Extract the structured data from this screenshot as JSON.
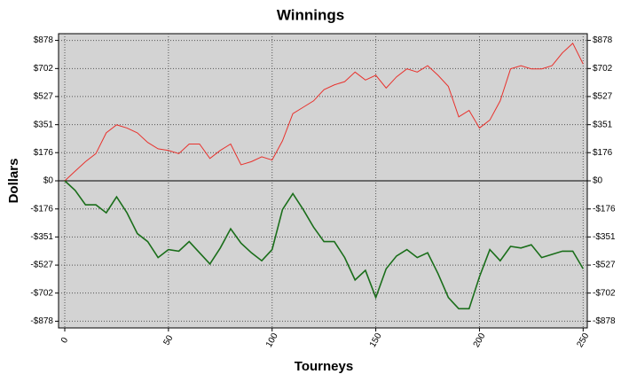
{
  "chart_data": {
    "type": "line",
    "title": "Winnings",
    "x_label": "Tourneys",
    "y_label": "Dollars",
    "x": [
      0,
      5,
      10,
      15,
      20,
      25,
      30,
      35,
      40,
      45,
      50,
      55,
      60,
      65,
      70,
      75,
      80,
      85,
      90,
      95,
      100,
      105,
      110,
      115,
      120,
      125,
      130,
      135,
      140,
      145,
      150,
      155,
      160,
      165,
      170,
      175,
      180,
      185,
      190,
      195,
      200,
      205,
      210,
      215,
      220,
      225,
      230,
      235,
      240,
      245,
      250
    ],
    "series": [
      {
        "color": "#e8322d",
        "values": [
          0,
          60,
          120,
          170,
          300,
          350,
          330,
          300,
          240,
          200,
          190,
          170,
          230,
          230,
          140,
          190,
          230,
          100,
          120,
          150,
          130,
          250,
          420,
          460,
          500,
          570,
          600,
          620,
          680,
          630,
          660,
          580,
          650,
          700,
          680,
          720,
          660,
          590,
          400,
          440,
          330,
          380,
          500,
          700,
          720,
          700,
          700,
          720,
          800,
          860,
          730
        ]
      },
      {
        "color": "#1a6e1a",
        "values": [
          0,
          -60,
          -150,
          -150,
          -200,
          -100,
          -200,
          -330,
          -380,
          -480,
          -430,
          -440,
          -380,
          -450,
          -520,
          -420,
          -300,
          -390,
          -450,
          -500,
          -430,
          -180,
          -80,
          -180,
          -290,
          -380,
          -380,
          -480,
          -620,
          -560,
          -730,
          -550,
          -470,
          -430,
          -480,
          -450,
          -580,
          -730,
          -800,
          -800,
          -600,
          -430,
          -500,
          -410,
          -420,
          -400,
          -480,
          -460,
          -440,
          -440,
          -550
        ]
      }
    ],
    "xlim": [
      -3,
      252
    ],
    "xticks": [
      0,
      50,
      100,
      150,
      200,
      250
    ],
    "ylim": [
      -920,
      920
    ],
    "yticks": [
      {
        "value": 878,
        "label": "$878"
      },
      {
        "value": 702,
        "label": "$702"
      },
      {
        "value": 527,
        "label": "$527"
      },
      {
        "value": 351,
        "label": "$351"
      },
      {
        "value": 176,
        "label": "$176"
      },
      {
        "value": 0,
        "label": "$0"
      },
      {
        "value": -176,
        "label": "-$176"
      },
      {
        "value": -351,
        "label": "-$351"
      },
      {
        "value": -527,
        "label": "-$527"
      },
      {
        "value": -702,
        "label": "-$702"
      },
      {
        "value": -878,
        "label": "-$878"
      }
    ],
    "grid": true
  }
}
